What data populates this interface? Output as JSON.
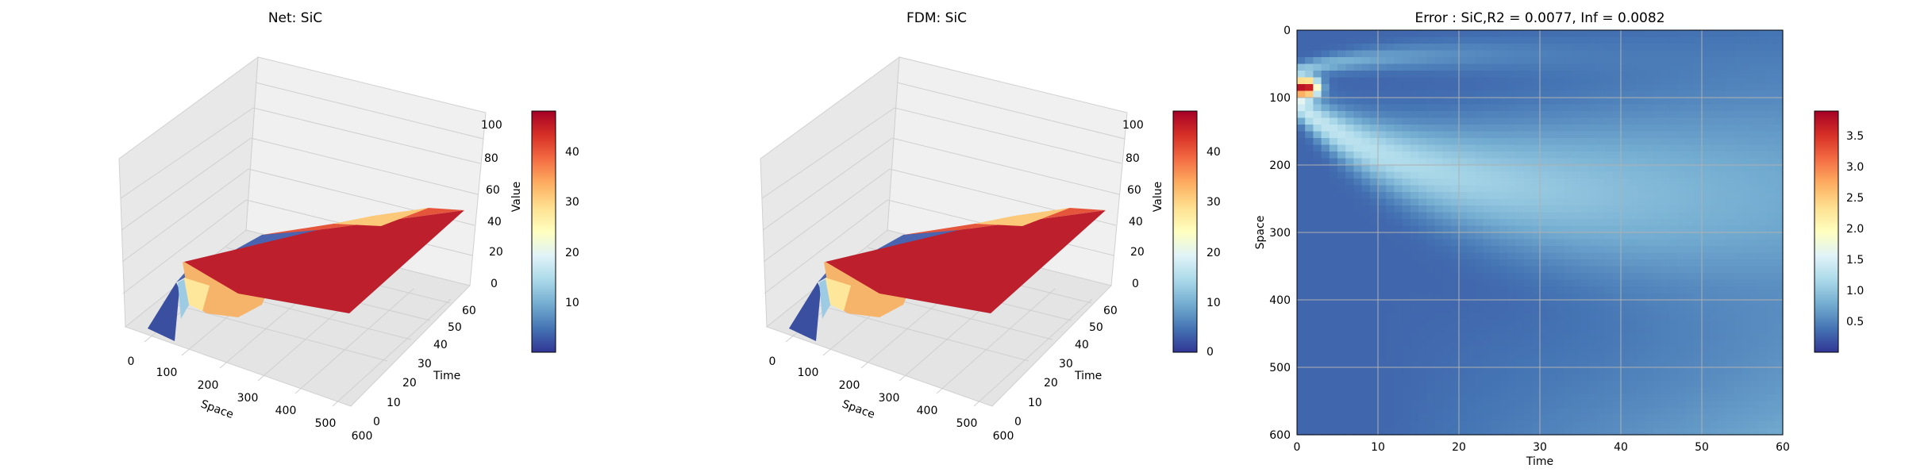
{
  "figure": {
    "colormap": "RdYlBu_r",
    "colormap_stops": [
      "#313695",
      "#4575b4",
      "#74add1",
      "#abd9e9",
      "#e0f3f8",
      "#ffffbf",
      "#fee090",
      "#fdae61",
      "#f46d43",
      "#d73027",
      "#a50026"
    ]
  },
  "chart_data": [
    {
      "type": "surface3d",
      "title": "Net: SiC",
      "xlabel": "Space",
      "ylabel": "Time",
      "zlabel": "",
      "xlim": [
        0,
        600
      ],
      "ylim": [
        0,
        60
      ],
      "zlim": [
        0,
        100
      ],
      "x_ticks": [
        "0",
        "100",
        "200",
        "300",
        "400",
        "500",
        "600"
      ],
      "y_ticks": [
        "0",
        "10",
        "20",
        "30",
        "40",
        "50",
        "60"
      ],
      "z_ticks": [
        "0",
        "20",
        "40",
        "60",
        "80",
        "100"
      ],
      "colorbar_label": "Value",
      "colorbar_ticks": [
        "10",
        "20",
        "30",
        "40"
      ],
      "colorbar_range": [
        0,
        48
      ],
      "grid": true,
      "surface": "near 48 at small space for times after about 1, decaying to about 40 at large space; near 0 at time 0"
    },
    {
      "type": "surface3d",
      "title": "FDM: SiC",
      "xlabel": "Space",
      "ylabel": "Time",
      "zlabel": "",
      "xlim": [
        0,
        600
      ],
      "ylim": [
        0,
        60
      ],
      "zlim": [
        0,
        100
      ],
      "x_ticks": [
        "0",
        "100",
        "200",
        "300",
        "400",
        "500",
        "600"
      ],
      "y_ticks": [
        "0",
        "10",
        "20",
        "30",
        "40",
        "50",
        "60"
      ],
      "z_ticks": [
        "0",
        "20",
        "40",
        "60",
        "80",
        "100"
      ],
      "colorbar_label": "Value",
      "colorbar_ticks": [
        "0",
        "10",
        "20",
        "30",
        "40"
      ],
      "colorbar_range": [
        0,
        48
      ],
      "grid": true,
      "surface": "near 48 at small space for times after about 1, decaying to about 40 at large space; near 0 at time 0"
    },
    {
      "type": "heatmap",
      "title": "Error : SiC,R2 = 0.0077, Inf = 0.0082",
      "xlabel": "Time",
      "ylabel": "Space",
      "xlim": [
        0,
        60
      ],
      "ylim": [
        600,
        0
      ],
      "x_ticks": [
        "0",
        "10",
        "20",
        "30",
        "40",
        "50",
        "60"
      ],
      "y_ticks": [
        "0",
        "100",
        "200",
        "300",
        "400",
        "500",
        "600"
      ],
      "colorbar_ticks": [
        "0.5",
        "1.0",
        "1.5",
        "2.0",
        "2.5",
        "3.0",
        "3.5"
      ],
      "colorbar_range": [
        0,
        3.9
      ],
      "grid": true,
      "max_error": 3.9,
      "max_error_location": {
        "time": 1,
        "space": 85
      },
      "features": "hot spot near time 1, space 85; light band fanning from space 110 at time 0 to space 200-300 at time 30; background about 0.3"
    }
  ]
}
